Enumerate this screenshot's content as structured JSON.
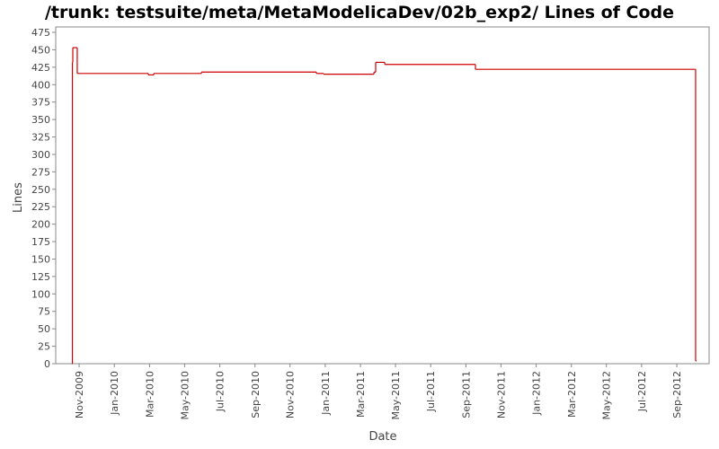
{
  "chart_data": {
    "type": "step",
    "title": "/trunk: testsuite/meta/MetaModelicaDev/02b_exp2/ Lines of Code",
    "x_label": "Date",
    "y_label": "Lines",
    "x": [
      2009.799,
      2009.801,
      2009.803,
      2009.824,
      2010.161,
      2010.187,
      2010.413,
      2010.958,
      2010.992,
      2011.231,
      2011.239,
      2011.282,
      2011.712,
      2012.756
    ],
    "series": [
      {
        "name": "Lines",
        "color": "#cc0000",
        "values": [
          0,
          432,
          453,
          416,
          414,
          416,
          418,
          416,
          415,
          418,
          432,
          429,
          422,
          4
        ]
      }
    ],
    "xlim": [
      2009.722,
      2012.82
    ],
    "xticks": [
      {
        "value": 2009.833,
        "label": "Nov-2009"
      },
      {
        "value": 2010.0,
        "label": "Jan-2010"
      },
      {
        "value": 2010.167,
        "label": "Mar-2010"
      },
      {
        "value": 2010.333,
        "label": "May-2010"
      },
      {
        "value": 2010.5,
        "label": "Jul-2010"
      },
      {
        "value": 2010.667,
        "label": "Sep-2010"
      },
      {
        "value": 2010.833,
        "label": "Nov-2010"
      },
      {
        "value": 2011.0,
        "label": "Jan-2011"
      },
      {
        "value": 2011.167,
        "label": "Mar-2011"
      },
      {
        "value": 2011.333,
        "label": "May-2011"
      },
      {
        "value": 2011.5,
        "label": "Jul-2011"
      },
      {
        "value": 2011.667,
        "label": "Sep-2011"
      },
      {
        "value": 2011.833,
        "label": "Nov-2011"
      },
      {
        "value": 2012.0,
        "label": "Jan-2012"
      },
      {
        "value": 2012.167,
        "label": "Mar-2012"
      },
      {
        "value": 2012.333,
        "label": "May-2012"
      },
      {
        "value": 2012.5,
        "label": "Jul-2012"
      },
      {
        "value": 2012.667,
        "label": "Sep-2012"
      }
    ],
    "ylim": [
      0,
      475
    ],
    "yticks": [
      0,
      25,
      50,
      75,
      100,
      125,
      150,
      175,
      200,
      225,
      250,
      275,
      300,
      325,
      350,
      375,
      400,
      425,
      450,
      475
    ],
    "grid": false
  }
}
